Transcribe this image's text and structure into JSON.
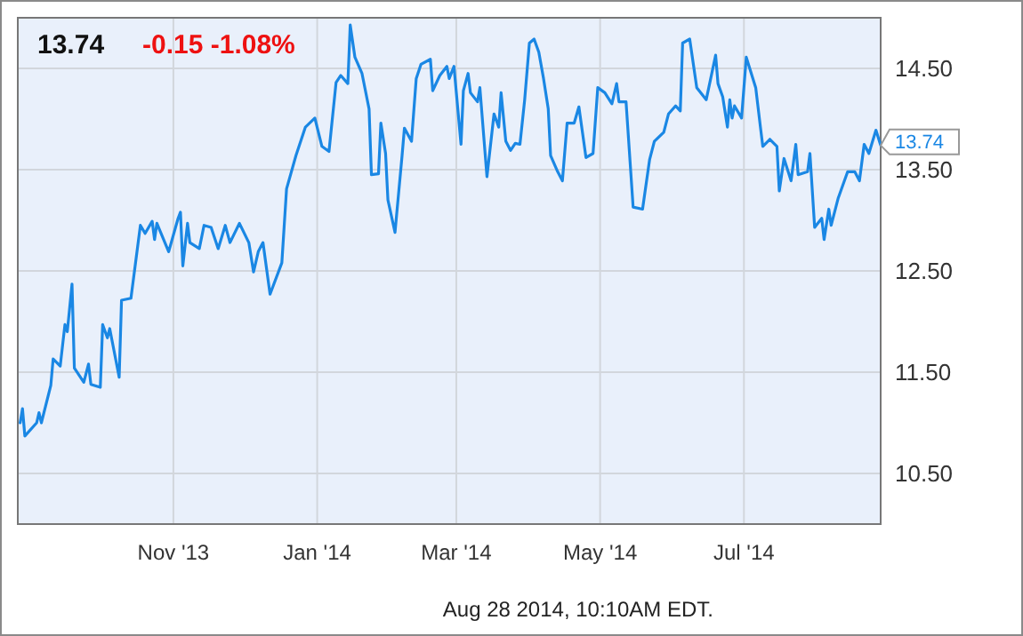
{
  "chart_data": {
    "type": "line",
    "title": "13.74",
    "subtitle": "-0.15 -1.08%",
    "annotations": [
      "Aug 28 2014, 10:10AM EDT.",
      {
        "text": "13.74",
        "x": "2014-08-28",
        "y": 13.74
      }
    ],
    "xlim": [
      "2013-08-27",
      "2014-08-28"
    ],
    "xticks": [
      {
        "value": "2013-11-01",
        "label": "Nov '13"
      },
      {
        "value": "2014-01-01",
        "label": "Jan '14"
      },
      {
        "value": "2014-03-01",
        "label": "Mar '14"
      },
      {
        "value": "2014-05-01",
        "label": "May '14"
      },
      {
        "value": "2014-07-01",
        "label": "Jul '14"
      }
    ],
    "ylim": [
      10,
      15
    ],
    "yticks": [
      {
        "value": 10.5,
        "label": "10.50"
      },
      {
        "value": 11.5,
        "label": "11.50"
      },
      {
        "value": 12.5,
        "label": "12.50"
      },
      {
        "value": 13.5,
        "label": "13.50"
      },
      {
        "value": 14.5,
        "label": "14.50"
      }
    ],
    "grid": true,
    "marker": "none",
    "line_style": "solid",
    "series": [
      {
        "color": "#1a87e4",
        "x": [
          "2013-08-28",
          "2013-08-29",
          "2013-08-30",
          "2013-09-04",
          "2013-09-05",
          "2013-09-06",
          "2013-09-10",
          "2013-09-11",
          "2013-09-14",
          "2013-09-16",
          "2013-09-17",
          "2013-09-19",
          "2013-09-20",
          "2013-09-24",
          "2013-09-26",
          "2013-09-27",
          "2013-10-01",
          "2013-10-02",
          "2013-10-04",
          "2013-10-05",
          "2013-10-09",
          "2013-10-10",
          "2013-10-14",
          "2013-10-18",
          "2013-10-20",
          "2013-10-23",
          "2013-10-24",
          "2013-10-25",
          "2013-10-30",
          "2013-11-03",
          "2013-11-04",
          "2013-11-05",
          "2013-11-07",
          "2013-11-08",
          "2013-11-12",
          "2013-11-14",
          "2013-11-17",
          "2013-11-20",
          "2013-11-23",
          "2013-11-25",
          "2013-11-29",
          "2013-12-03",
          "2013-12-05",
          "2013-12-07",
          "2013-12-09",
          "2013-12-12",
          "2013-12-17",
          "2013-12-19",
          "2013-12-23",
          "2013-12-27",
          "2013-12-31",
          "2014-01-03",
          "2014-01-06",
          "2014-01-09",
          "2014-01-11",
          "2014-01-14",
          "2014-01-15",
          "2014-01-17",
          "2014-01-20",
          "2014-01-23",
          "2014-01-24",
          "2014-01-27",
          "2014-01-28",
          "2014-01-30",
          "2014-01-31",
          "2014-02-03",
          "2014-02-06",
          "2014-02-07",
          "2014-02-10",
          "2014-02-12",
          "2014-02-14",
          "2014-02-18",
          "2014-02-19",
          "2014-02-22",
          "2014-02-25",
          "2014-02-26",
          "2014-02-28",
          "2014-03-03",
          "2014-03-04",
          "2014-03-06",
          "2014-03-07",
          "2014-03-10",
          "2014-03-11",
          "2014-03-14",
          "2014-03-17",
          "2014-03-19",
          "2014-03-20",
          "2014-03-22",
          "2014-03-24",
          "2014-03-26",
          "2014-03-28",
          "2014-03-30",
          "2014-04-01",
          "2014-04-03",
          "2014-04-05",
          "2014-04-07",
          "2014-04-09",
          "2014-04-10",
          "2014-04-13",
          "2014-04-15",
          "2014-04-17",
          "2014-04-20",
          "2014-04-22",
          "2014-04-25",
          "2014-04-28",
          "2014-04-30",
          "2014-05-03",
          "2014-05-06",
          "2014-05-08",
          "2014-05-09",
          "2014-05-12",
          "2014-05-15",
          "2014-05-19",
          "2014-05-22",
          "2014-05-24",
          "2014-05-28",
          "2014-05-30",
          "2014-06-02",
          "2014-06-04",
          "2014-06-05",
          "2014-06-08",
          "2014-06-11",
          "2014-06-15",
          "2014-06-19",
          "2014-06-20",
          "2014-06-22",
          "2014-06-24",
          "2014-06-25",
          "2014-06-26",
          "2014-06-27",
          "2014-06-30",
          "2014-07-02",
          "2014-07-06",
          "2014-07-08",
          "2014-07-09",
          "2014-07-12",
          "2014-07-15",
          "2014-07-16",
          "2014-07-18",
          "2014-07-21",
          "2014-07-23",
          "2014-07-24",
          "2014-07-28",
          "2014-07-29",
          "2014-07-31",
          "2014-08-03",
          "2014-08-04",
          "2014-08-06",
          "2014-08-07",
          "2014-08-10",
          "2014-08-14",
          "2014-08-17",
          "2014-08-19",
          "2014-08-21",
          "2014-08-23",
          "2014-08-26",
          "2014-08-28"
        ],
        "values": [
          11.0,
          11.14,
          10.87,
          11.0,
          11.1,
          11.0,
          11.37,
          11.63,
          11.56,
          11.97,
          11.9,
          12.37,
          11.54,
          11.4,
          11.58,
          11.38,
          11.35,
          11.97,
          11.84,
          11.93,
          11.45,
          12.21,
          12.23,
          12.95,
          12.87,
          12.99,
          12.81,
          12.97,
          12.69,
          13.02,
          13.08,
          12.55,
          12.97,
          12.78,
          12.72,
          12.95,
          12.93,
          12.72,
          12.95,
          12.78,
          12.97,
          12.78,
          12.49,
          12.69,
          12.78,
          12.27,
          12.58,
          13.31,
          13.64,
          13.92,
          14.01,
          13.73,
          13.68,
          14.36,
          14.43,
          14.35,
          14.93,
          14.61,
          14.45,
          14.1,
          13.45,
          13.46,
          13.96,
          13.66,
          13.2,
          12.88,
          13.64,
          13.91,
          13.78,
          14.4,
          14.54,
          14.59,
          14.28,
          14.43,
          14.52,
          14.4,
          14.52,
          13.75,
          14.28,
          14.45,
          14.26,
          14.17,
          14.31,
          13.43,
          14.05,
          13.92,
          14.26,
          13.78,
          13.69,
          13.76,
          13.75,
          14.19,
          14.75,
          14.79,
          14.66,
          14.4,
          14.1,
          13.64,
          13.48,
          13.39,
          13.96,
          13.96,
          14.12,
          13.62,
          13.66,
          14.31,
          14.26,
          14.15,
          14.35,
          14.17,
          14.17,
          13.13,
          13.11,
          13.6,
          13.78,
          13.87,
          14.05,
          14.13,
          14.08,
          14.75,
          14.79,
          14.31,
          14.19,
          14.63,
          14.35,
          14.22,
          13.92,
          14.19,
          14.01,
          14.13,
          14.01,
          14.61,
          14.31,
          13.92,
          13.73,
          13.8,
          13.73,
          13.29,
          13.61,
          13.39,
          13.75,
          13.45,
          13.48,
          13.66,
          12.93,
          13.02,
          12.81,
          13.11,
          12.95,
          13.22,
          13.48,
          13.48,
          13.39,
          13.75,
          13.66,
          13.89,
          13.74
        ]
      }
    ]
  }
}
